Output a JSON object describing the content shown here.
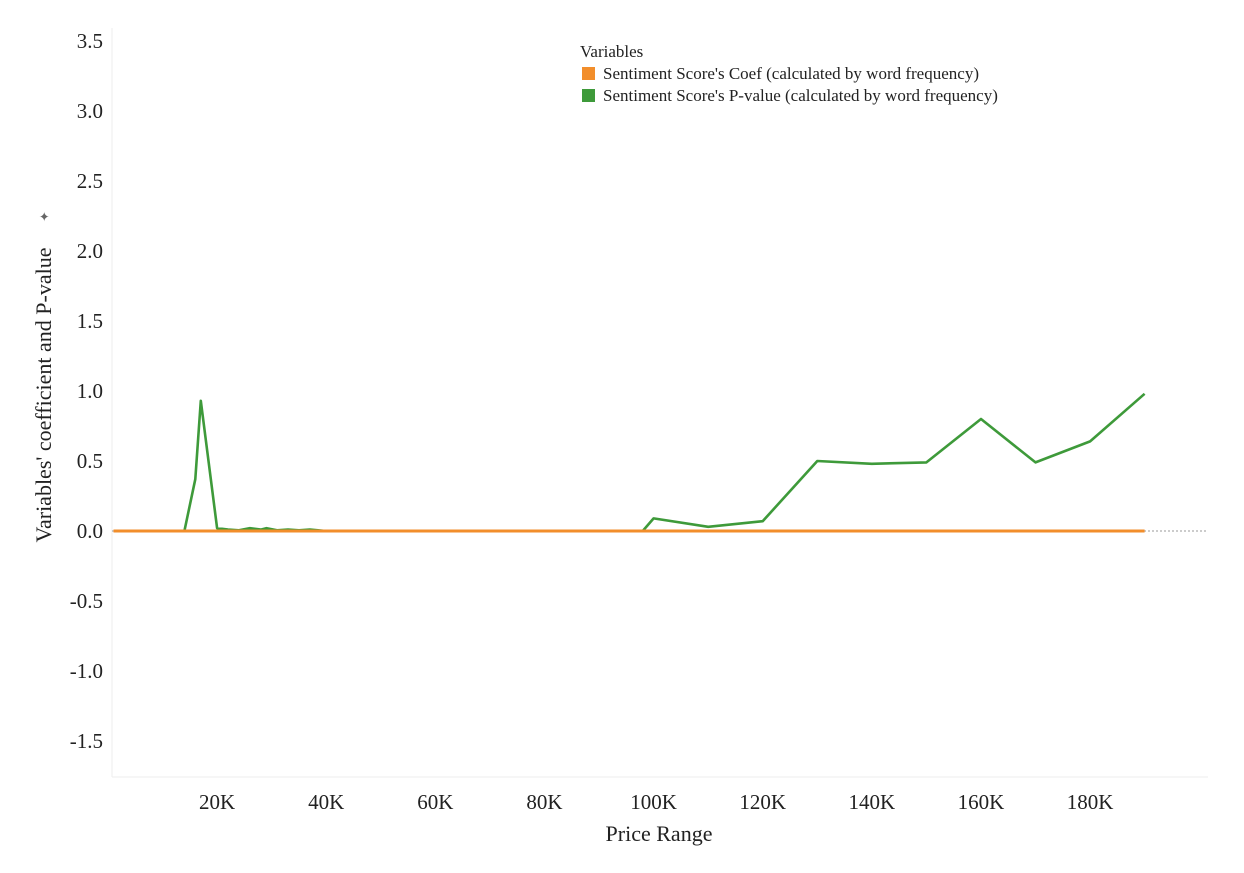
{
  "chart_data": {
    "type": "line",
    "title": "",
    "xlabel": "Price Range",
    "ylabel": "Variables' coefficient and P-value",
    "xlim": [
      0,
      201000
    ],
    "ylim": [
      -1.75,
      3.6
    ],
    "grid": false,
    "x_ticks": [
      20000,
      40000,
      60000,
      80000,
      100000,
      120000,
      140000,
      160000,
      180000
    ],
    "x_tick_labels": [
      "20K",
      "40K",
      "60K",
      "80K",
      "100K",
      "120K",
      "140K",
      "160K",
      "180K"
    ],
    "y_ticks": [
      3.5,
      3.0,
      2.5,
      2.0,
      1.5,
      1.0,
      0.5,
      0.0,
      -0.5,
      -1.0,
      -1.5
    ],
    "y_tick_labels": [
      "3.5",
      "3.0",
      "2.5",
      "2.0",
      "1.5",
      "1.0",
      "0.5",
      "0.0",
      "-0.5",
      "-1.0",
      "-1.5"
    ],
    "legend": {
      "title": "Variables",
      "placement": "top-center"
    },
    "series": [
      {
        "name": "Sentiment Score's Coef (calculated by word frequency)",
        "color": "#f28e2b",
        "x": [
          1000,
          20000,
          40000,
          60000,
          80000,
          100000,
          120000,
          140000,
          160000,
          180000,
          190000
        ],
        "values": [
          0,
          0,
          0,
          0,
          0,
          0,
          0,
          0,
          0,
          0,
          0
        ]
      },
      {
        "name": "Sentiment Score's P-value (calculated by word frequency)",
        "color": "#3e9a3a",
        "x": [
          1000,
          14000,
          16000,
          17000,
          20000,
          22000,
          24000,
          26000,
          28000,
          29000,
          31000,
          33000,
          35000,
          37000,
          40000,
          60000,
          80000,
          98000,
          100000,
          110000,
          120000,
          130000,
          140000,
          150000,
          160000,
          170000,
          180000,
          190000
        ],
        "values": [
          0,
          0,
          0.37,
          0.93,
          0.02,
          0.01,
          0.005,
          0.02,
          0.01,
          0.02,
          0.005,
          0.01,
          0.005,
          0.01,
          0,
          0,
          0,
          0,
          0.09,
          0.03,
          0.07,
          0.5,
          0.48,
          0.49,
          0.8,
          0.49,
          0.64,
          0.98
        ]
      }
    ]
  }
}
